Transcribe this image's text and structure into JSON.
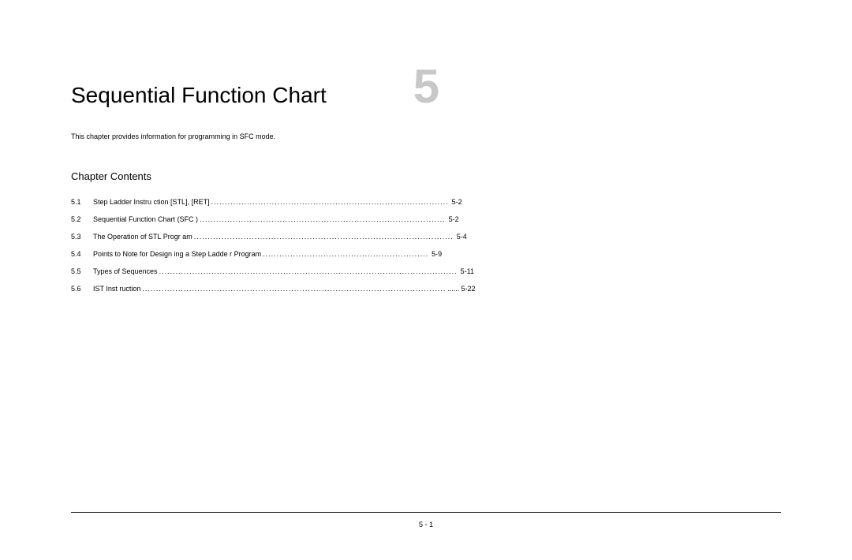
{
  "chapter": {
    "title": "Sequential Function Chart",
    "number": "5",
    "description": "This chapter provides information for programming in SFC mode.",
    "contents_heading": "Chapter Contents",
    "page_footer": "5 - 1"
  },
  "toc": [
    {
      "num": "5.1",
      "label": "Step Ladder Instru ction [STL],   [RET]",
      "page": "5-2",
      "dot_count": 86
    },
    {
      "num": "5.2",
      "label": "Sequential Function    Chart (SFC )",
      "page": "5-2",
      "dot_count": 89
    },
    {
      "num": "5.3",
      "label": "The Operation of  STL Progr am",
      "page": "5-4",
      "dot_count": 94
    },
    {
      "num": "5.4",
      "label": "Points to Note for Design   ing a Step Ladde r Program",
      "page": "5-9",
      "dot_count": 60
    },
    {
      "num": "5.5",
      "label": "Types of  Sequences",
      "page": " 5-11",
      "dot_count": 108
    },
    {
      "num": "5.6",
      "label": "IST Inst ruction",
      "page": "5-22",
      "dot_count": 110,
      "tail": " ......"
    }
  ],
  "style": {
    "background_color": "#ffffff",
    "text_color": "#000000",
    "chapter_number_color": "#c8c8c8",
    "title_fontsize": 28,
    "number_fontsize": 60,
    "body_fontsize": 9,
    "heading_fontsize": 13,
    "rule_color": "#000000"
  }
}
